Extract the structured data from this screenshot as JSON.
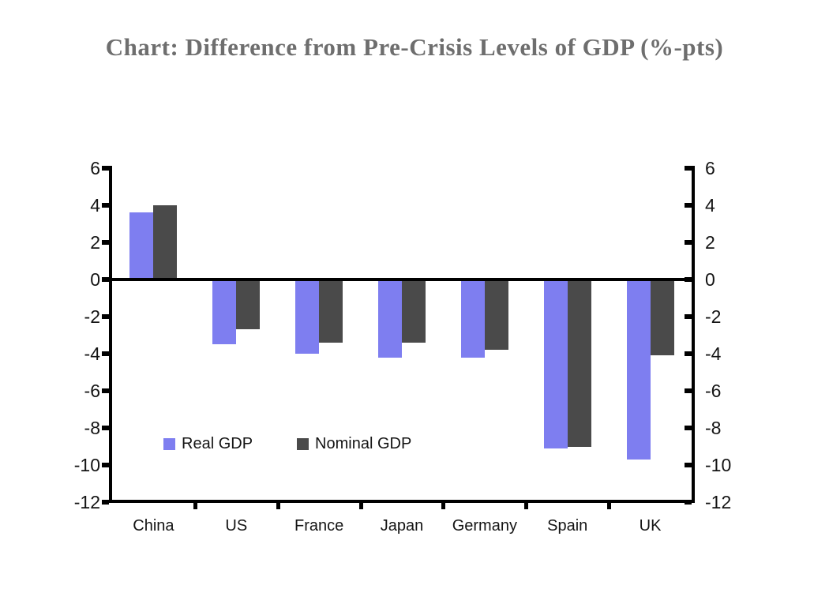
{
  "page": {
    "background_color": "#ffffff"
  },
  "chart_data": {
    "type": "bar",
    "title": "Chart: Difference from Pre-Crisis Levels of GDP (%-pts)",
    "title_color": "#6e6e6e",
    "categories": [
      "China",
      "US",
      "France",
      "Japan",
      "Germany",
      "Spain",
      "UK"
    ],
    "series": [
      {
        "name": "Real GDP",
        "color": "#7e7ef0",
        "values": [
          3.6,
          -3.5,
          -4.0,
          -4.2,
          -4.2,
          -9.1,
          -9.7
        ]
      },
      {
        "name": "Nominal GDP",
        "color": "#4a4a4a",
        "values": [
          4.0,
          -2.7,
          -3.4,
          -3.4,
          -3.8,
          -9.0,
          -4.1
        ]
      }
    ],
    "xlabel": "",
    "ylabel": "",
    "ylim": [
      -12,
      6
    ],
    "yticks": [
      6,
      4,
      2,
      0,
      -2,
      -4,
      -6,
      -8,
      -10,
      -12
    ],
    "ytick_step": 2,
    "grid": false,
    "zero_line": true,
    "axes_style": "mirrored left and right y-axes with identical tick labels",
    "legend_position": "inside plot, lower-left",
    "axis_color": "#000000",
    "tick_label_color": "#141414"
  }
}
